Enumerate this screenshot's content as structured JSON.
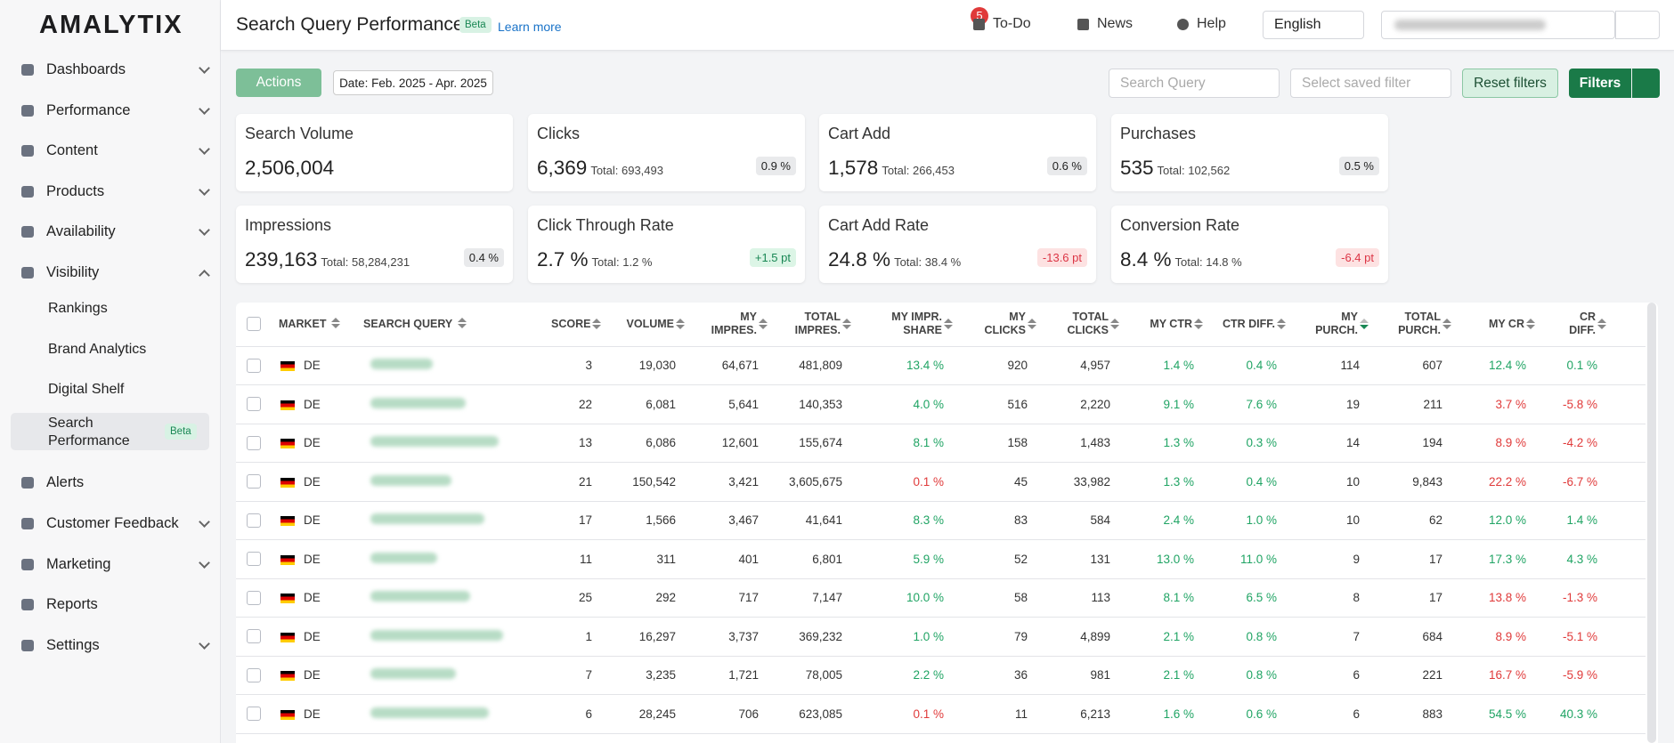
{
  "sidebar": {
    "logo": "AMALYTIX",
    "items": [
      "Dashboards",
      "Performance",
      "Content",
      "Products",
      "Availability",
      "Visibility"
    ],
    "subitems": [
      "Rankings",
      "Brand Analytics",
      "Digital Shelf",
      "Search Performance"
    ],
    "sub_badge": "Beta",
    "items_after": [
      "Alerts",
      "Customer Feedback",
      "Marketing",
      "Reports",
      "Settings"
    ]
  },
  "header": {
    "title": "Search Query Performance",
    "badge": "Beta",
    "learn_more": "Learn more",
    "todo_count": "5",
    "todo": "To-Do",
    "news": "News",
    "help": "Help",
    "language": "English"
  },
  "toolbar": {
    "actions": "Actions",
    "date": "Date: Feb. 2025 - Apr. 2025",
    "search_placeholder": "Search Query",
    "saved_filter": "Select saved filter",
    "reset": "Reset filters",
    "filters": "Filters"
  },
  "cards": [
    {
      "label": "Search Volume",
      "value": "2,506,004"
    },
    {
      "label": "Clicks",
      "value": "6,369",
      "total": "Total: 693,493",
      "badge": "0.9 %",
      "tone": "neutral"
    },
    {
      "label": "Cart Add",
      "value": "1,578",
      "total": "Total: 266,453",
      "badge": "0.6 %",
      "tone": "neutral"
    },
    {
      "label": "Purchases",
      "value": "535",
      "total": "Total: 102,562",
      "badge": "0.5 %",
      "tone": "neutral"
    },
    {
      "label": "Impressions",
      "value": "239,163",
      "total": "Total: 58,284,231",
      "badge": "0.4 %",
      "tone": "neutral"
    },
    {
      "label": "Click Through Rate",
      "value": "2.7 %",
      "total": "Total: 1.2 %",
      "badge": "+1.5 pt",
      "tone": "good"
    },
    {
      "label": "Cart Add Rate",
      "value": "24.8 %",
      "total": "Total: 38.4 %",
      "badge": "-13.6 pt",
      "tone": "bad"
    },
    {
      "label": "Conversion Rate",
      "value": "8.4 %",
      "total": "Total: 14.8 %",
      "badge": "-6.4 pt",
      "tone": "bad"
    }
  ],
  "table": {
    "columns": [
      "MARKET",
      "SEARCH QUERY",
      "SCORE",
      "VOLUME",
      "MY\nIMPRES.",
      "TOTAL\nIMPRES.",
      "MY IMPR.\nSHARE",
      "MY\nCLICKS",
      "TOTAL\nCLICKS",
      "MY CTR",
      "CTR DIFF.",
      "MY\nPURCH.",
      "TOTAL\nPURCH.",
      "MY CR",
      "CR\nDIFF."
    ],
    "sorted_column": 11,
    "rows": [
      {
        "market": "DE",
        "cells": [
          "3",
          "19,030",
          "64,671",
          "481,809",
          {
            "text": "13.4 %",
            "tone": "good"
          },
          "920",
          "4,957",
          {
            "text": "1.4 %",
            "tone": "good"
          },
          {
            "text": "0.4 %",
            "tone": "good"
          },
          "114",
          "607",
          {
            "text": "12.4 %",
            "tone": "good"
          },
          {
            "text": "0.1 %",
            "tone": "good"
          }
        ]
      },
      {
        "market": "DE",
        "cells": [
          "22",
          "6,081",
          "5,641",
          "140,353",
          {
            "text": "4.0 %",
            "tone": "good"
          },
          "516",
          "2,220",
          {
            "text": "9.1 %",
            "tone": "good"
          },
          {
            "text": "7.6 %",
            "tone": "good"
          },
          "19",
          "211",
          {
            "text": "3.7 %",
            "tone": "bad"
          },
          {
            "text": "-5.8 %",
            "tone": "bad"
          }
        ]
      },
      {
        "market": "DE",
        "cells": [
          "13",
          "6,086",
          "12,601",
          "155,674",
          {
            "text": "8.1 %",
            "tone": "good"
          },
          "158",
          "1,483",
          {
            "text": "1.3 %",
            "tone": "good"
          },
          {
            "text": "0.3 %",
            "tone": "good"
          },
          "14",
          "194",
          {
            "text": "8.9 %",
            "tone": "bad"
          },
          {
            "text": "-4.2 %",
            "tone": "bad"
          }
        ]
      },
      {
        "market": "DE",
        "cells": [
          "21",
          "150,542",
          "3,421",
          "3,605,675",
          {
            "text": "0.1 %",
            "tone": "bad"
          },
          "45",
          "33,982",
          {
            "text": "1.3 %",
            "tone": "good"
          },
          {
            "text": "0.4 %",
            "tone": "good"
          },
          "10",
          "9,843",
          {
            "text": "22.2 %",
            "tone": "bad"
          },
          {
            "text": "-6.7 %",
            "tone": "bad"
          }
        ]
      },
      {
        "market": "DE",
        "cells": [
          "17",
          "1,566",
          "3,467",
          "41,641",
          {
            "text": "8.3 %",
            "tone": "good"
          },
          "83",
          "584",
          {
            "text": "2.4 %",
            "tone": "good"
          },
          {
            "text": "1.0 %",
            "tone": "good"
          },
          "10",
          "62",
          {
            "text": "12.0 %",
            "tone": "good"
          },
          {
            "text": "1.4 %",
            "tone": "good"
          }
        ]
      },
      {
        "market": "DE",
        "cells": [
          "11",
          "311",
          "401",
          "6,801",
          {
            "text": "5.9 %",
            "tone": "good"
          },
          "52",
          "131",
          {
            "text": "13.0 %",
            "tone": "good"
          },
          {
            "text": "11.0 %",
            "tone": "good"
          },
          "9",
          "17",
          {
            "text": "17.3 %",
            "tone": "good"
          },
          {
            "text": "4.3 %",
            "tone": "good"
          }
        ]
      },
      {
        "market": "DE",
        "cells": [
          "25",
          "292",
          "717",
          "7,147",
          {
            "text": "10.0 %",
            "tone": "good"
          },
          "58",
          "113",
          {
            "text": "8.1 %",
            "tone": "good"
          },
          {
            "text": "6.5 %",
            "tone": "good"
          },
          "8",
          "17",
          {
            "text": "13.8 %",
            "tone": "bad"
          },
          {
            "text": "-1.3 %",
            "tone": "bad"
          }
        ]
      },
      {
        "market": "DE",
        "cells": [
          "1",
          "16,297",
          "3,737",
          "369,232",
          {
            "text": "1.0 %",
            "tone": "good"
          },
          "79",
          "4,899",
          {
            "text": "2.1 %",
            "tone": "good"
          },
          {
            "text": "0.8 %",
            "tone": "good"
          },
          "7",
          "684",
          {
            "text": "8.9 %",
            "tone": "bad"
          },
          {
            "text": "-5.1 %",
            "tone": "bad"
          }
        ]
      },
      {
        "market": "DE",
        "cells": [
          "7",
          "3,235",
          "1,721",
          "78,005",
          {
            "text": "2.2 %",
            "tone": "good"
          },
          "36",
          "981",
          {
            "text": "2.1 %",
            "tone": "good"
          },
          {
            "text": "0.8 %",
            "tone": "good"
          },
          "6",
          "221",
          {
            "text": "16.7 %",
            "tone": "bad"
          },
          {
            "text": "-5.9 %",
            "tone": "bad"
          }
        ]
      },
      {
        "market": "DE",
        "cells": [
          "6",
          "28,245",
          "706",
          "623,085",
          {
            "text": "0.1 %",
            "tone": "bad"
          },
          "11",
          "6,213",
          {
            "text": "1.6 %",
            "tone": "good"
          },
          {
            "text": "0.6 %",
            "tone": "good"
          },
          "6",
          "883",
          {
            "text": "54.5 %",
            "tone": "good"
          },
          {
            "text": "40.3 %",
            "tone": "good"
          }
        ]
      }
    ]
  }
}
